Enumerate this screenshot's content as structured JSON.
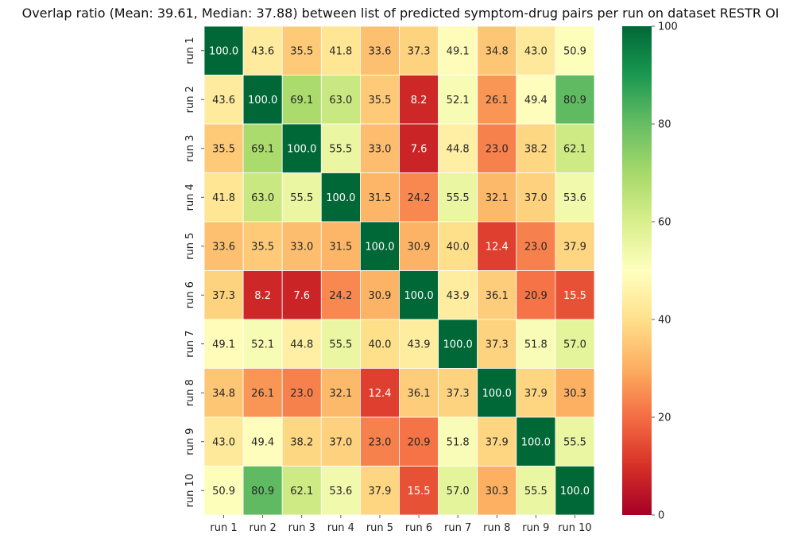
{
  "chart_data": {
    "type": "heatmap",
    "title": "Overlap ratio (Mean: 39.61, Median: 37.88) between list of predicted symptom-drug pairs per run on dataset RESTR OI",
    "row_labels": [
      "run 1",
      "run 2",
      "run 3",
      "run 4",
      "run 5",
      "run 6",
      "run 7",
      "run 8",
      "run 9",
      "run 10"
    ],
    "col_labels": [
      "run 1",
      "run 2",
      "run 3",
      "run 4",
      "run 5",
      "run 6",
      "run 7",
      "run 8",
      "run 9",
      "run 10"
    ],
    "values": [
      [
        100.0,
        43.6,
        35.5,
        41.8,
        33.6,
        37.3,
        49.1,
        34.8,
        43.0,
        50.9
      ],
      [
        43.6,
        100.0,
        69.1,
        63.0,
        35.5,
        8.2,
        52.1,
        26.1,
        49.4,
        80.9
      ],
      [
        35.5,
        69.1,
        100.0,
        55.5,
        33.0,
        7.6,
        44.8,
        23.0,
        38.2,
        62.1
      ],
      [
        41.8,
        63.0,
        55.5,
        100.0,
        31.5,
        24.2,
        55.5,
        32.1,
        37.0,
        53.6
      ],
      [
        33.6,
        35.5,
        33.0,
        31.5,
        100.0,
        30.9,
        40.0,
        12.4,
        23.0,
        37.9
      ],
      [
        37.3,
        8.2,
        7.6,
        24.2,
        30.9,
        100.0,
        43.9,
        36.1,
        20.9,
        15.5
      ],
      [
        49.1,
        52.1,
        44.8,
        55.5,
        40.0,
        43.9,
        100.0,
        37.3,
        51.8,
        57.0
      ],
      [
        34.8,
        26.1,
        23.0,
        32.1,
        12.4,
        36.1,
        37.3,
        100.0,
        37.9,
        30.3
      ],
      [
        43.0,
        49.4,
        38.2,
        37.0,
        23.0,
        20.9,
        51.8,
        37.9,
        100.0,
        55.5
      ],
      [
        50.9,
        80.9,
        62.1,
        53.6,
        37.9,
        15.5,
        57.0,
        30.3,
        55.5,
        100.0
      ]
    ],
    "colormap": "RdYlGn",
    "vmin": 0,
    "vmax": 100,
    "colorbar_ticks": [
      0,
      20,
      40,
      60,
      80,
      100
    ],
    "annotation_format": "1 decimal"
  }
}
